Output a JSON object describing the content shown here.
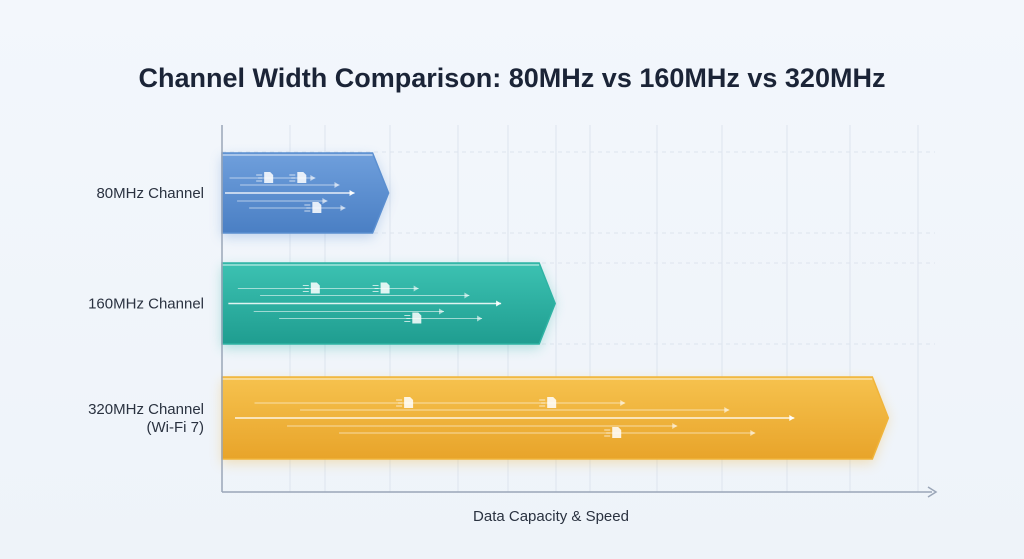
{
  "chart_data": {
    "type": "bar",
    "orientation": "horizontal",
    "title": "Channel Width Comparison: 80MHz vs 160MHz vs 320MHz",
    "xlabel": "Data Capacity & Speed",
    "ylabel": "",
    "categories": [
      [
        "80MHz Channel"
      ],
      [
        "160MHz Channel"
      ],
      [
        "320MHz Channel",
        "(Wi-Fi 7)"
      ]
    ],
    "values": [
      80,
      160,
      320
    ],
    "xlim": [
      0,
      340
    ],
    "grid": true,
    "colors": [
      "#5b8fd0",
      "#2fb3a4",
      "#f0b43a"
    ]
  }
}
